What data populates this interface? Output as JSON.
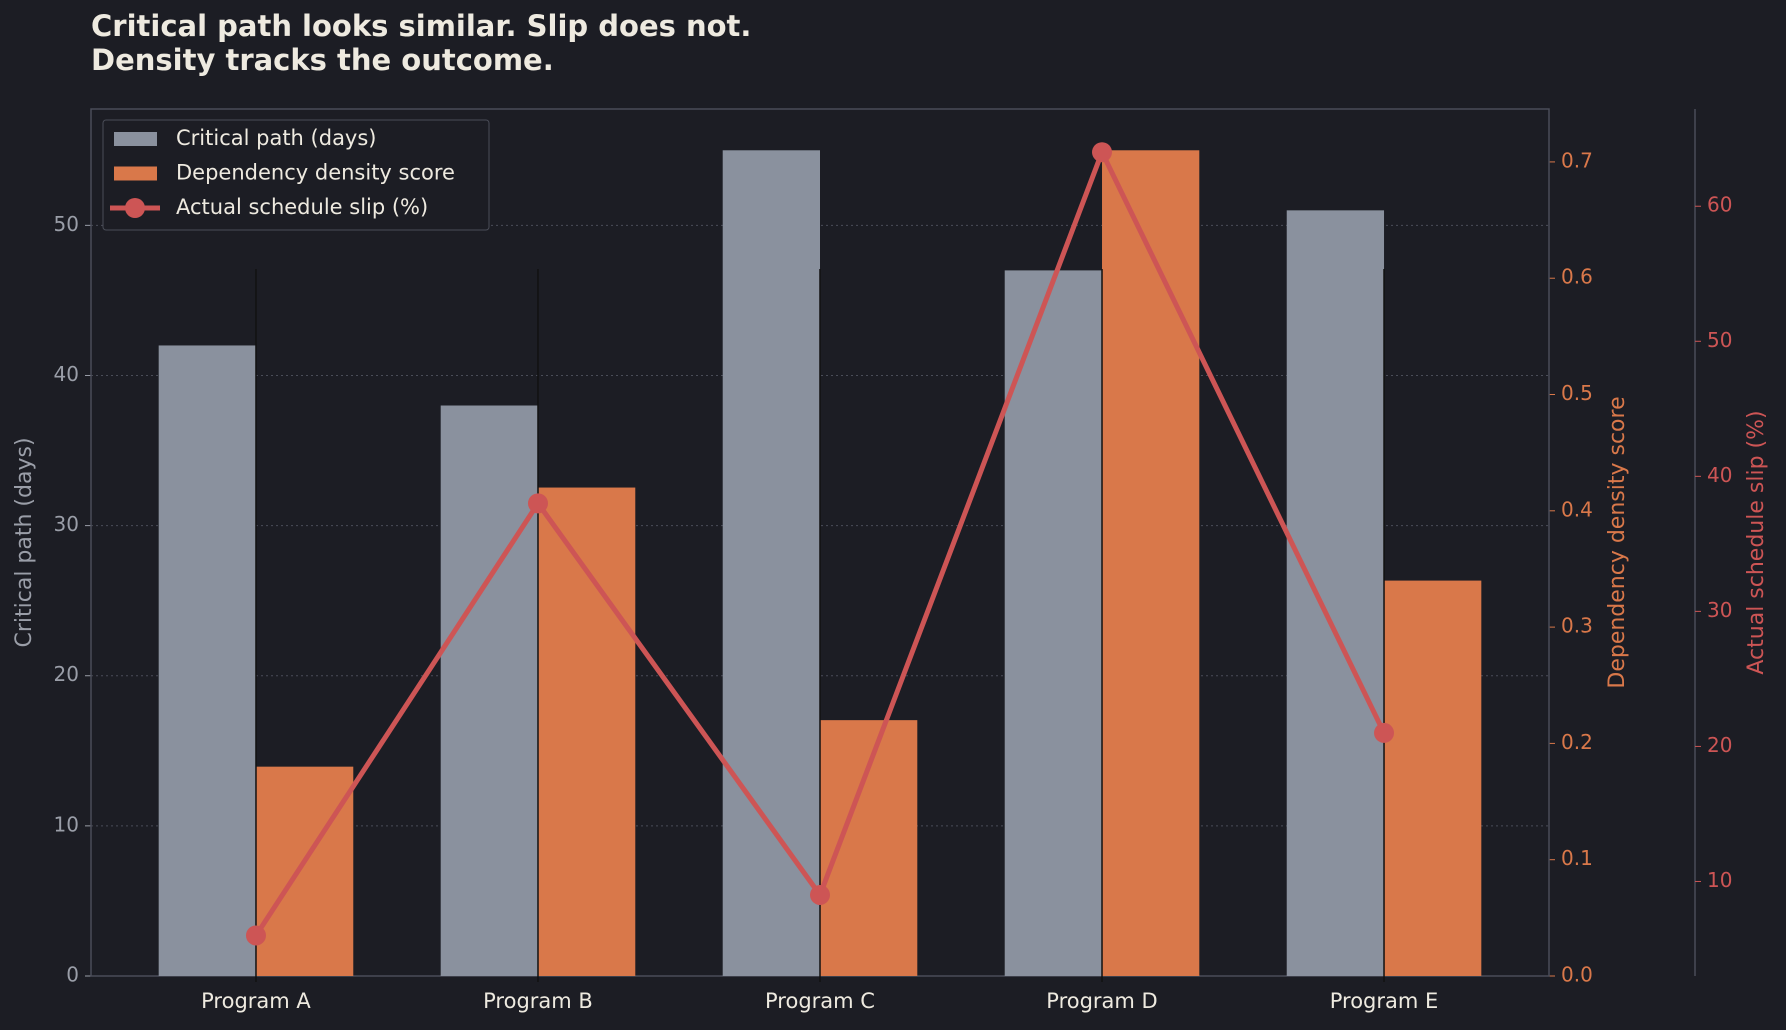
{
  "chart_data": {
    "type": "bar",
    "title": [
      "Critical path looks similar. Slip does not.",
      "Density tracks the outcome."
    ],
    "categories": [
      "Program A",
      "Program B",
      "Program C",
      "Program D",
      "Program E"
    ],
    "series": [
      {
        "name": "Critical path (days)",
        "color": "#8a919e",
        "type": "bar",
        "values": [
          42,
          38,
          55,
          47,
          51
        ]
      },
      {
        "name": "Dependency density score",
        "color": "#d9784a",
        "type": "bar",
        "axis": "y2",
        "values": [
          0.18,
          0.42,
          0.22,
          0.71,
          0.34
        ]
      },
      {
        "name": "Actual schedule slip (%)",
        "color": "#cd5555",
        "type": "line",
        "axis": "y3",
        "values": [
          6,
          38,
          9,
          64,
          21
        ]
      }
    ],
    "ylabel": "Critical path (days)",
    "y2label": "Dependency density score",
    "y3label": "Actual schedule slip (%)",
    "ylim": [
      0,
      57.75
    ],
    "yticks": [
      0,
      10,
      20,
      30,
      40,
      50
    ],
    "y2lim": [
      0,
      0.7455
    ],
    "y2ticks": [
      0.0,
      0.1,
      0.2,
      0.3,
      0.4,
      0.5,
      0.6,
      0.7
    ],
    "y3lim": [
      3,
      67.2
    ],
    "y3ticks": [
      10,
      20,
      30,
      40,
      50,
      60
    ],
    "grid": true,
    "legend": "upper left"
  }
}
